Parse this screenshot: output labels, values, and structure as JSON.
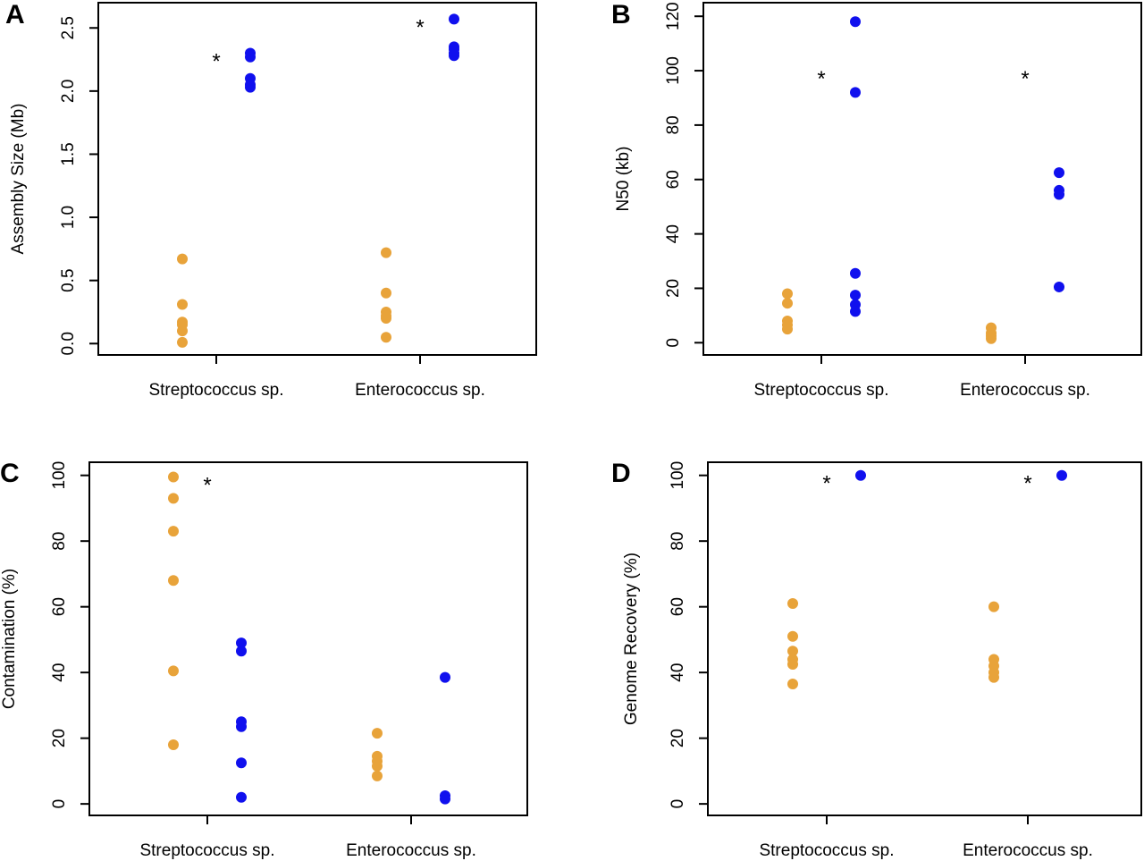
{
  "colors": {
    "group1": "#E8A33A",
    "group2": "#1010EE",
    "axis": "#000000"
  },
  "chart_data": [
    {
      "panel": "A",
      "type": "scatter",
      "ylabel": "Assembly Size (Mb)",
      "ylim": [
        -0.09,
        2.7
      ],
      "yticks": [
        0.0,
        0.5,
        1.0,
        1.5,
        2.0,
        2.5
      ],
      "ytick_labels": [
        "0.0",
        "0.5",
        "1.0",
        "1.5",
        "2.0",
        "2.5"
      ],
      "categories": [
        "Streptococcus sp.",
        "Enterococcus sp."
      ],
      "significance": [
        "*",
        "*"
      ],
      "series": [
        {
          "name": "group1",
          "values": [
            [
              0.67,
              0.31,
              0.17,
              0.15,
              0.1,
              0.01
            ],
            [
              0.72,
              0.4,
              0.25,
              0.22,
              0.2,
              0.05
            ]
          ]
        },
        {
          "name": "group2",
          "values": [
            [
              2.3,
              2.27,
              2.1,
              2.05,
              2.03
            ],
            [
              2.57,
              2.35,
              2.33,
              2.3,
              2.28
            ]
          ]
        }
      ]
    },
    {
      "panel": "B",
      "type": "scatter",
      "ylabel": "N50 (kb)",
      "ylim": [
        -4.5,
        125
      ],
      "yticks": [
        0,
        20,
        40,
        60,
        80,
        100,
        120
      ],
      "ytick_labels": [
        "0",
        "20",
        "40",
        "60",
        "80",
        "100",
        "120"
      ],
      "categories": [
        "Streptococcus sp.",
        "Enterococcus sp."
      ],
      "significance": [
        "*",
        "*"
      ],
      "significance_y": 100,
      "series": [
        {
          "name": "group1",
          "values": [
            [
              18,
              14.5,
              8,
              6.5,
              5
            ],
            [
              5.5,
              3.5,
              2.5,
              1.5
            ]
          ]
        },
        {
          "name": "group2",
          "values": [
            [
              118,
              92,
              25.5,
              17.5,
              14,
              11.5
            ],
            [
              62.5,
              56,
              54.5,
              20.5
            ]
          ]
        }
      ]
    },
    {
      "panel": "C",
      "type": "scatter",
      "ylabel": "Contamination (%)",
      "ylim": [
        -3.5,
        104
      ],
      "yticks": [
        0,
        20,
        40,
        60,
        80,
        100
      ],
      "ytick_labels": [
        "0",
        "20",
        "40",
        "60",
        "80",
        "100"
      ],
      "categories": [
        "Streptococcus sp.",
        "Enterococcus sp."
      ],
      "significance": [
        "*",
        ""
      ],
      "series": [
        {
          "name": "group1",
          "values": [
            [
              99.5,
              93,
              83,
              68,
              40.5,
              18
            ],
            [
              21.5,
              14.5,
              13,
              11.5,
              8.5
            ]
          ]
        },
        {
          "name": "group2",
          "values": [
            [
              49,
              46.5,
              25,
              23.5,
              12.5,
              2
            ],
            [
              38.5,
              2.5,
              1.5
            ]
          ]
        }
      ]
    },
    {
      "panel": "D",
      "type": "scatter",
      "ylabel": "Genome Recovery (%)",
      "ylim": [
        -3.5,
        104
      ],
      "yticks": [
        0,
        20,
        40,
        60,
        80,
        100
      ],
      "ytick_labels": [
        "0",
        "20",
        "40",
        "60",
        "80",
        "100"
      ],
      "categories": [
        "Streptococcus sp.",
        "Enterococcus sp."
      ],
      "significance": [
        "*",
        "*"
      ],
      "series": [
        {
          "name": "group1",
          "values": [
            [
              61,
              51,
              46.5,
              44,
              42.5,
              36.5
            ],
            [
              60,
              44,
              42,
              40,
              38.5
            ]
          ]
        },
        {
          "name": "group2",
          "values": [
            [
              100
            ],
            [
              100
            ]
          ]
        }
      ]
    }
  ]
}
